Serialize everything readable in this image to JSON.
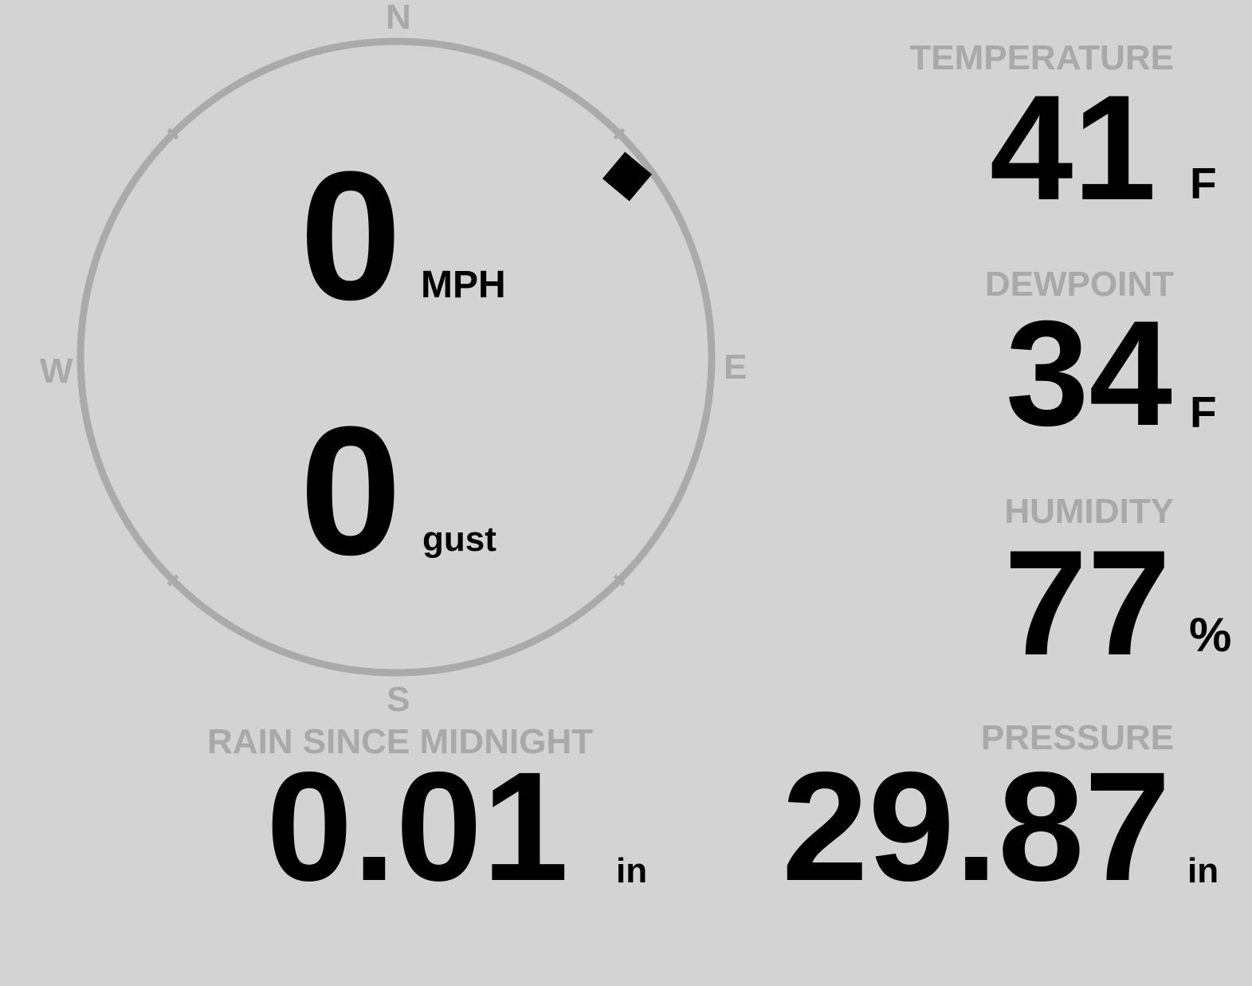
{
  "colors": {
    "background": "#d3d3d3",
    "label": "#a9a9a9",
    "value": "#000000",
    "compass_ring": "#aaaaaa"
  },
  "wind": {
    "compass": {
      "north": "N",
      "south": "S",
      "east": "E",
      "west": "W"
    },
    "direction_deg": 52,
    "speed": "0",
    "speed_unit": "MPH",
    "gust": "0",
    "gust_unit": "gust"
  },
  "temperature": {
    "label": "TEMPERATURE",
    "value": "41",
    "unit": "F"
  },
  "dewpoint": {
    "label": "DEWPOINT",
    "value": "34",
    "unit": "F"
  },
  "humidity": {
    "label": "HUMIDITY",
    "value": "77",
    "unit": "%"
  },
  "pressure": {
    "label": "PRESSURE",
    "value": "29.87",
    "unit": "in"
  },
  "rain": {
    "label": "RAIN SINCE MIDNIGHT",
    "value": "0.01",
    "unit": "in"
  }
}
